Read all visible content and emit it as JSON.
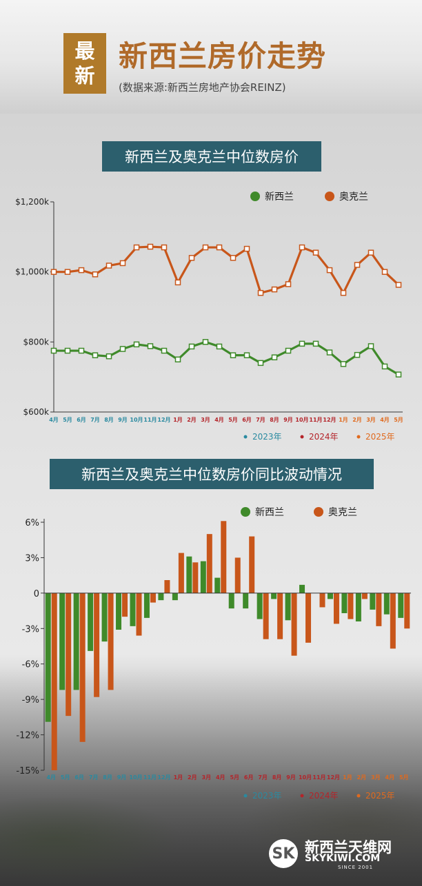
{
  "header": {
    "badge_line1": "最",
    "badge_line2": "新",
    "title": "新西兰房价走势",
    "source": "(数据来源:新西兰房地产协会REINZ)"
  },
  "charts_titles": {
    "line": "新西兰及奥克兰中位数房价",
    "bar": "新西兰及奥克兰中位数房价同比波动情况"
  },
  "logo": {
    "mark": "SK",
    "cn": "新西兰天维网",
    "en": "SKYKIWI.COM",
    "since": "SINCE 2001"
  },
  "colors": {
    "nz": "#3f8a2a",
    "akl": "#c8561a",
    "y2023": "#2a8aa0",
    "y2024": "#b4242a",
    "y2025": "#e06a1e",
    "header_bar": "#2c5f6d",
    "badge": "#b07a2a"
  },
  "chart_data": [
    {
      "type": "line",
      "title": "新西兰及奥克兰中位数房价",
      "x": [
        "4月",
        "5月",
        "6月",
        "7月",
        "8月",
        "9月",
        "10月",
        "11月",
        "12月",
        "1月",
        "2月",
        "3月",
        "4月",
        "5月",
        "6月",
        "7月",
        "8月",
        "9月",
        "10月",
        "11月",
        "12月",
        "1月",
        "2月",
        "3月",
        "4月",
        "5月"
      ],
      "x_year_groups": [
        {
          "label": "2023年",
          "count": 9
        },
        {
          "label": "2024年",
          "count": 12
        },
        {
          "label": "2025年",
          "count": 5
        }
      ],
      "y_ticks": [
        "$600k",
        "$800k",
        "$1,000k",
        "$1,200k"
      ],
      "ylim": [
        600,
        1200
      ],
      "series": [
        {
          "name": "新西兰",
          "values": [
            775,
            775,
            775,
            762,
            759,
            780,
            793,
            788,
            775,
            750,
            787,
            800,
            787,
            762,
            762,
            740,
            756,
            775,
            795,
            795,
            770,
            737,
            763,
            788,
            730,
            707
          ]
        },
        {
          "name": "奥克兰",
          "values": [
            1000,
            1000,
            1005,
            993,
            1018,
            1025,
            1070,
            1072,
            1070,
            970,
            1040,
            1070,
            1070,
            1040,
            1066,
            940,
            950,
            965,
            1070,
            1055,
            1005,
            940,
            1020,
            1055,
            1000,
            963
          ]
        }
      ],
      "legend": "top-right",
      "year_legend": "bottom-right"
    },
    {
      "type": "bar",
      "title": "新西兰及奥克兰中位数房价同比波动情况",
      "x": [
        "4月",
        "5月",
        "6月",
        "7月",
        "8月",
        "9月",
        "10月",
        "11月",
        "12月",
        "1月",
        "2月",
        "3月",
        "4月",
        "5月",
        "6月",
        "7月",
        "8月",
        "9月",
        "10月",
        "11月",
        "12月",
        "1月",
        "2月",
        "3月",
        "4月",
        "5月"
      ],
      "x_year_groups": [
        {
          "label": "2023年",
          "count": 9
        },
        {
          "label": "2024年",
          "count": 12
        },
        {
          "label": "2025年",
          "count": 5
        }
      ],
      "y_ticks": [
        "6%",
        "3%",
        "0",
        "-3%",
        "-6%",
        "-9%",
        "-12%",
        "-15%"
      ],
      "ylim": [
        -15,
        6
      ],
      "series": [
        {
          "name": "新西兰",
          "values": [
            -10.9,
            -8.2,
            -8.2,
            -4.9,
            -4.1,
            -3.1,
            -2.8,
            -2.1,
            -0.6,
            -0.6,
            3.1,
            2.7,
            1.3,
            -1.3,
            -1.3,
            -2.2,
            -0.5,
            -2.3,
            0.7,
            0.0,
            -0.5,
            -1.7,
            -2.4,
            -1.4,
            -1.8,
            -2.1
          ]
        },
        {
          "name": "奥克兰",
          "values": [
            -15.0,
            -10.4,
            -12.6,
            -8.8,
            -8.2,
            -2.0,
            -3.6,
            -0.8,
            1.1,
            3.4,
            2.6,
            5.0,
            6.1,
            3.0,
            4.8,
            -3.9,
            -3.9,
            -5.3,
            -4.2,
            -1.2,
            -2.6,
            -2.2,
            -0.5,
            -2.8,
            -4.7,
            -3.0
          ]
        }
      ],
      "legend": "top-right",
      "year_legend": "bottom-right"
    }
  ]
}
